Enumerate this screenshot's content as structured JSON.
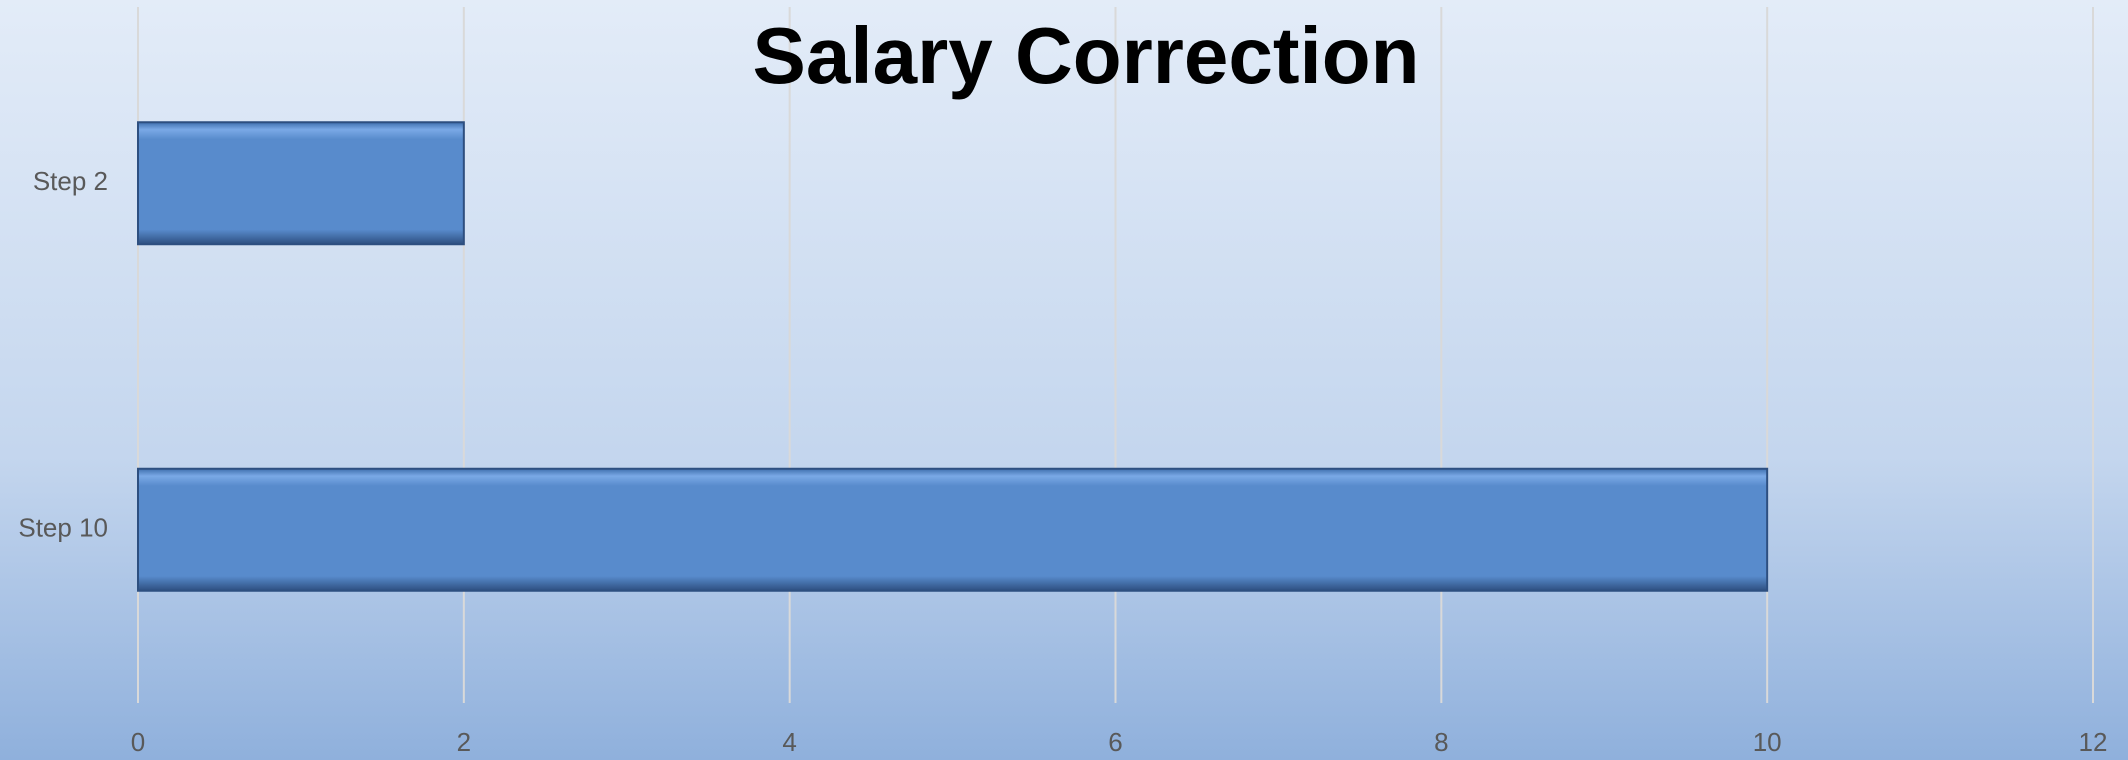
{
  "chart_data": {
    "type": "hbar",
    "title": "Salary Correction",
    "categories": [
      "Step 2",
      "Step 10"
    ],
    "values": [
      2,
      10
    ],
    "color": "#588bcc",
    "xlim": [
      0,
      12
    ],
    "xticks": [
      0,
      2,
      4,
      6,
      8,
      10,
      12
    ],
    "grid": true
  }
}
